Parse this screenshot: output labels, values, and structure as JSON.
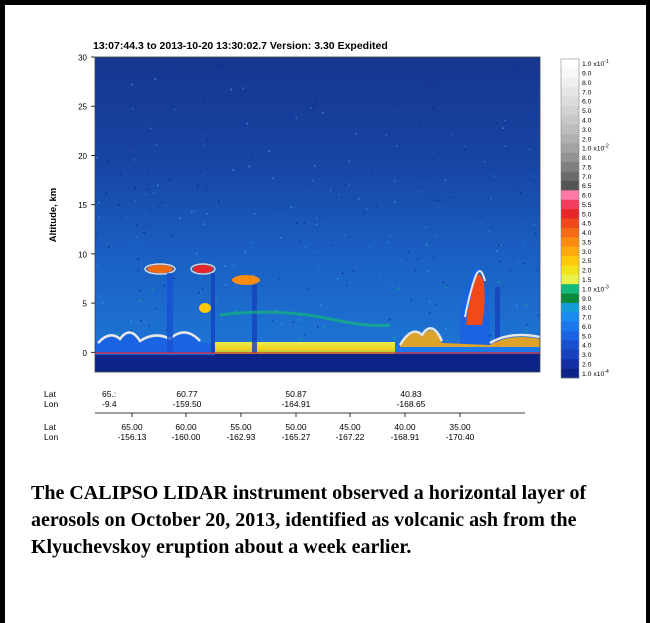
{
  "chart_data": {
    "type": "heatmap",
    "title": "13:07:44.3  to  2013-10-20 13:30:02.7   Version: 3.30  Expedited",
    "ylabel": "Altitude, km",
    "ylim": [
      -2,
      30
    ],
    "yticks": [
      0,
      5,
      10,
      15,
      20,
      25,
      30
    ],
    "track_rows": [
      {
        "label_lat": "Lat",
        "label_lon": "Lon",
        "points": [
          {
            "lat": "65.:",
            "lon": "-9.4"
          },
          {
            "lat": "60.77",
            "lon": "-159.50"
          },
          {
            "lat": "50.87",
            "lon": "-164.91"
          },
          {
            "lat": "40.83",
            "lon": "-168.65"
          }
        ]
      },
      {
        "label_lat": "Lat",
        "label_lon": "Lon",
        "points": [
          {
            "lat": "65.00",
            "lon": "-156.13"
          },
          {
            "lat": "60.00",
            "lon": "-160.00"
          },
          {
            "lat": "55.00",
            "lon": "-162.93"
          },
          {
            "lat": "50.00",
            "lon": "-165.27"
          },
          {
            "lat": "45.00",
            "lon": "-167.22"
          },
          {
            "lat": "40.00",
            "lon": "-168.91"
          },
          {
            "lat": "35.00",
            "lon": "-170.40"
          }
        ]
      }
    ],
    "colorbar": {
      "labels": [
        "1.0 x10",
        "9.0",
        "8.0",
        "7.0",
        "6.0",
        "5.0",
        "4.0",
        "3.0",
        "2.0",
        "1.0 x10",
        "8.0",
        "7.5",
        "7.0",
        "6.5",
        "6.0",
        "5.5",
        "5.0",
        "4.5",
        "4.0",
        "3.5",
        "3.0",
        "2.5",
        "2.0",
        "1.5",
        "1.0 x10",
        "9.0",
        "8.0",
        "7.0",
        "6.0",
        "5.0",
        "4.0",
        "3.0",
        "2.0",
        "1.0 x10"
      ],
      "exponents": {
        "0": "-1",
        "9": "-2",
        "24": "-3",
        "33": "-4"
      },
      "colors": [
        "#ffffff",
        "#f7f7f7",
        "#efefef",
        "#e6e6e6",
        "#dcdcdc",
        "#d2d2d2",
        "#c8c8c8",
        "#bdbdbd",
        "#b0b0b0",
        "#a3a3a3",
        "#939393",
        "#808080",
        "#6b6b6b",
        "#555555",
        "#ff7aa8",
        "#f23c5c",
        "#e8262a",
        "#f04a1c",
        "#f56a14",
        "#fb8c10",
        "#ffaa0c",
        "#ffc80a",
        "#f2e21c",
        "#e8f04a",
        "#12b878",
        "#0c8a3c",
        "#129cd8",
        "#1a8af0",
        "#1a78ec",
        "#1a64e4",
        "#1850d0",
        "#1640bc",
        "#1230a4",
        "#0c2488"
      ]
    },
    "caption": "The CALIPSO LIDAR instrument observed a horizontal layer of aerosols on October 20, 2013, identified as volcanic ash from the Klyuchevskoy eruption about a week earlier."
  }
}
